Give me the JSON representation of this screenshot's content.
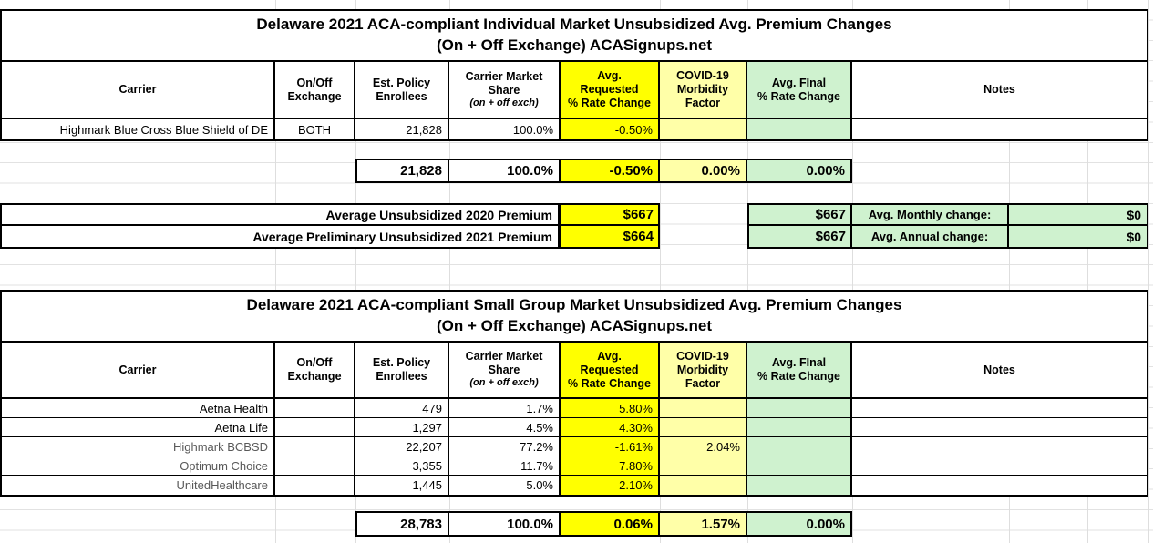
{
  "colors": {
    "highlight_yellow": "#FFFF00",
    "pale_yellow": "#FFFFA8",
    "pale_green": "#CFF2CF",
    "muted_text": "#595959"
  },
  "individual_market": {
    "title_line1": "Delaware 2021 ACA-compliant Individual Market Unsubsidized Avg. Premium Changes",
    "title_line2": "(On + Off Exchange) ACASignups.net",
    "headers": {
      "carrier": "Carrier",
      "exchange": "On/Off\nExchange",
      "enrollees": "Est. Policy\nEnrollees",
      "share": "Carrier Market\nShare",
      "share_sub": "(on + off exch)",
      "requested": "Avg.\nRequested\n% Rate Change",
      "morbidity": "COVID-19\nMorbidity\nFactor",
      "final": "Avg. FInal\n% Rate Change",
      "notes": "Notes"
    },
    "rows": [
      {
        "carrier": "Highmark Blue Cross Blue Shield of DE",
        "exchange": "BOTH",
        "enrollees": "21,828",
        "share": "100.0%",
        "requested": "-0.50%",
        "morbidity": "",
        "final": "",
        "notes": ""
      }
    ],
    "totals": {
      "enrollees": "21,828",
      "share": "100.0%",
      "requested": "-0.50%",
      "morbidity": "0.00%",
      "final": "0.00%"
    },
    "premiums": {
      "rows": [
        {
          "label": "Average Unsubsidized 2020 Premium",
          "requested_value": "$667",
          "final_value": "$667",
          "change_label": "Avg. Monthly change:",
          "change_value": "$0"
        },
        {
          "label": "Average Preliminary Unsubsidized 2021 Premium",
          "requested_value": "$664",
          "final_value": "$667",
          "change_label": "Avg. Annual change:",
          "change_value": "$0"
        }
      ]
    }
  },
  "small_group_market": {
    "title_line1": "Delaware 2021 ACA-compliant Small Group Market Unsubsidized Avg. Premium Changes",
    "title_line2": "(On + Off Exchange) ACASignups.net",
    "headers": {
      "carrier": "Carrier",
      "exchange": "On/Off\nExchange",
      "enrollees": "Est. Policy\nEnrollees",
      "share": "Carrier Market\nShare",
      "share_sub": "(on + off exch)",
      "requested": "Avg.\nRequested\n% Rate Change",
      "morbidity": "COVID-19\nMorbidity\nFactor",
      "final": "Avg. FInal\n% Rate Change",
      "notes": "Notes"
    },
    "rows": [
      {
        "carrier": "Aetna Health",
        "exchange": "",
        "enrollees": "479",
        "share": "1.7%",
        "requested": "5.80%",
        "morbidity": "",
        "final": "",
        "notes": ""
      },
      {
        "carrier": "Aetna Life",
        "exchange": "",
        "enrollees": "1,297",
        "share": "4.5%",
        "requested": "4.30%",
        "morbidity": "",
        "final": "",
        "notes": ""
      },
      {
        "carrier": "Highmark BCBSD",
        "exchange": "",
        "enrollees": "22,207",
        "share": "77.2%",
        "requested": "-1.61%",
        "morbidity": "2.04%",
        "final": "",
        "notes": ""
      },
      {
        "carrier": "Optimum Choice",
        "exchange": "",
        "enrollees": "3,355",
        "share": "11.7%",
        "requested": "7.80%",
        "morbidity": "",
        "final": "",
        "notes": ""
      },
      {
        "carrier": "UnitedHealthcare",
        "exchange": "",
        "enrollees": "1,445",
        "share": "5.0%",
        "requested": "2.10%",
        "morbidity": "",
        "final": "",
        "notes": ""
      }
    ],
    "totals": {
      "enrollees": "28,783",
      "share": "100.0%",
      "requested": "0.06%",
      "morbidity": "1.57%",
      "final": "0.00%"
    }
  }
}
